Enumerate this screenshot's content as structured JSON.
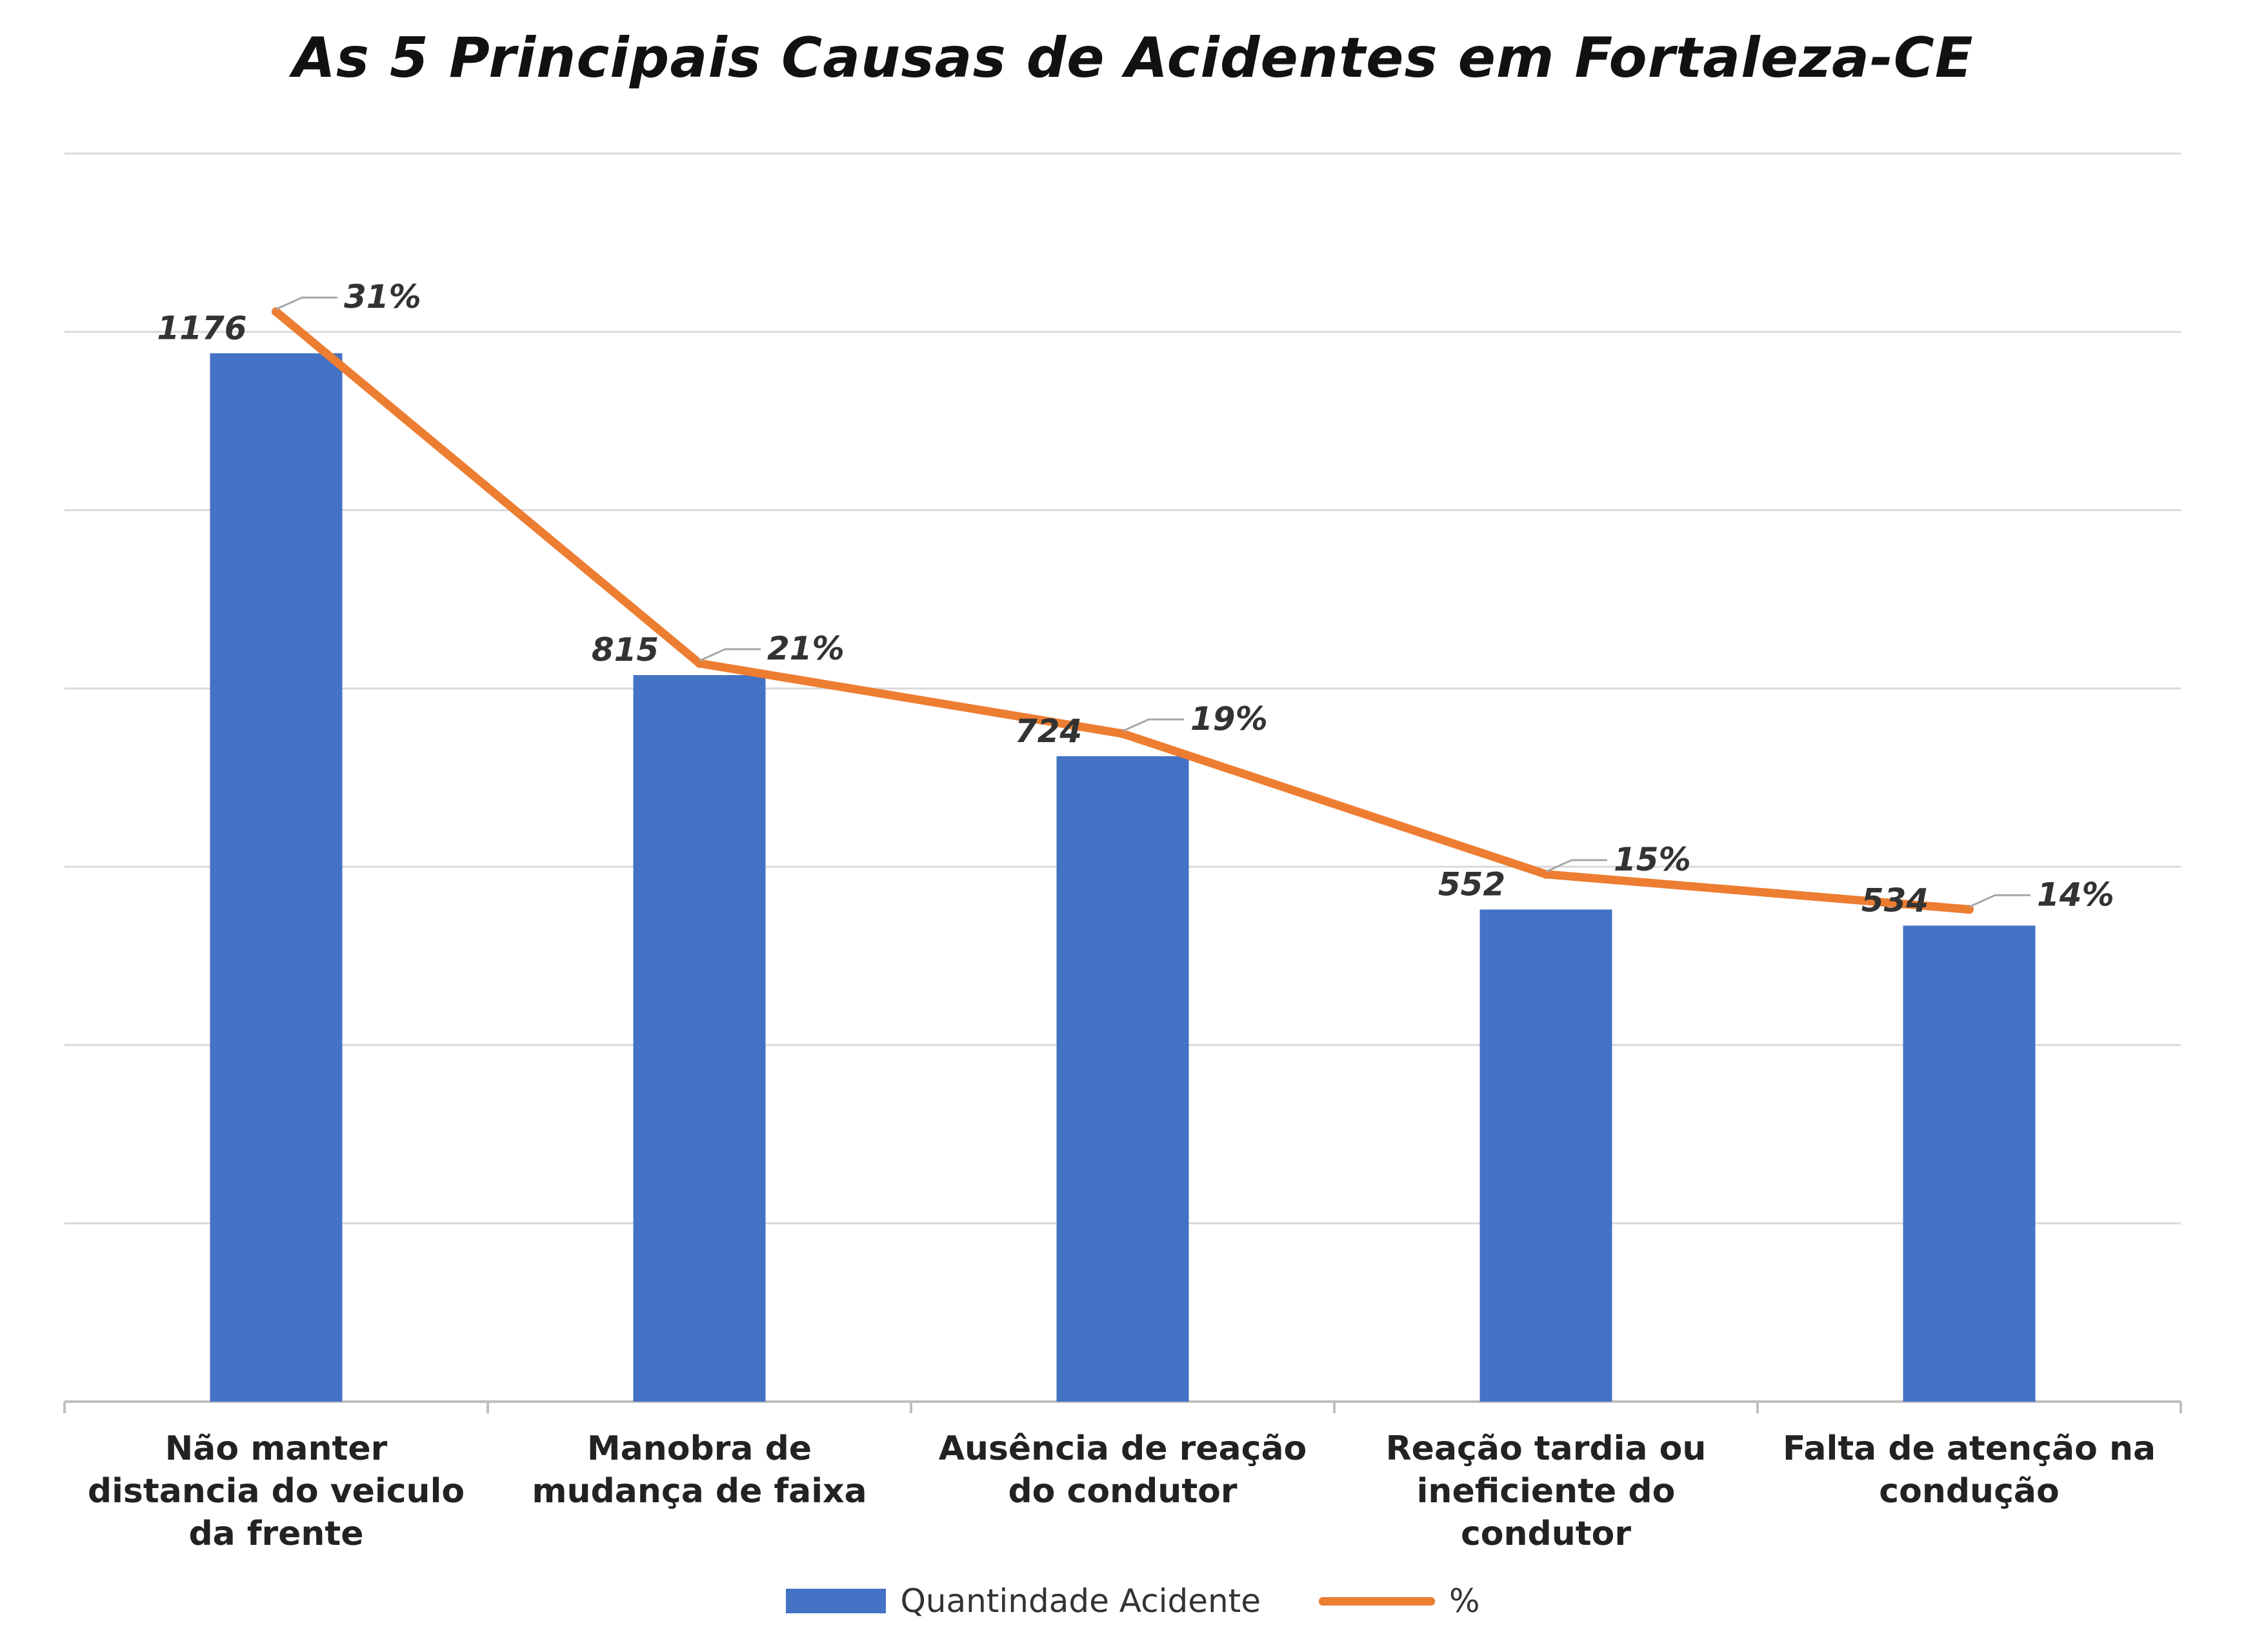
{
  "chart_data": {
    "type": "bar",
    "title": "As 5 Principais Causas de Acidentes em Fortaleza-CE",
    "categories": [
      [
        "Não manter",
        "distancia do veiculo",
        "da frente"
      ],
      [
        "Manobra de",
        "mudança de faixa"
      ],
      [
        "Ausência de reação",
        "do condutor"
      ],
      [
        "Reação tardia ou",
        "ineficiente do",
        "condutor"
      ],
      [
        "Falta de atenção na",
        "condução"
      ]
    ],
    "series": [
      {
        "name": "Quantindade Acidente",
        "type": "bar",
        "values": [
          1176,
          815,
          724,
          552,
          534
        ],
        "labels": [
          "1176",
          "815",
          "724",
          "552",
          "534"
        ],
        "color": "#4472c4"
      },
      {
        "name": "%",
        "type": "line",
        "values": [
          31,
          21,
          19,
          15,
          14
        ],
        "labels": [
          "31%",
          "21%",
          "19%",
          "15%",
          "14%"
        ],
        "color": "#ed7d31"
      }
    ],
    "ylim": [
      0,
      1400
    ],
    "y2lim": [
      0,
      35.5
    ],
    "grid": true,
    "legend_position": "bottom"
  }
}
